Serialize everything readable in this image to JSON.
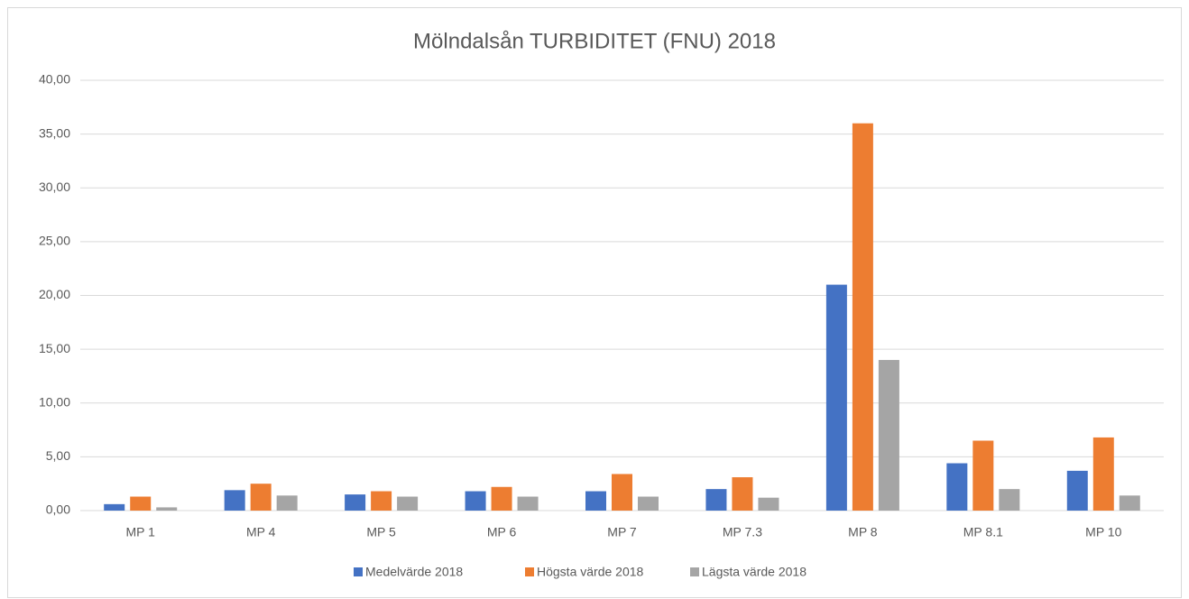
{
  "chart_data": {
    "type": "bar",
    "title": "Mölndalsån TURBIDITET (FNU)  2018",
    "categories": [
      "MP 1",
      "MP 4",
      "MP 5",
      "MP 6",
      "MP 7",
      "MP 7.3",
      "MP 8",
      "MP 8.1",
      "MP 10"
    ],
    "series": [
      {
        "name": "Medelvärde 2018",
        "color": "#4472c4",
        "values": [
          0.6,
          1.9,
          1.5,
          1.8,
          1.8,
          2.0,
          21.0,
          4.4,
          3.7
        ]
      },
      {
        "name": "Högsta värde 2018",
        "color": "#ed7d31",
        "values": [
          1.3,
          2.5,
          1.8,
          2.2,
          3.4,
          3.1,
          36.0,
          6.5,
          6.8
        ]
      },
      {
        "name": "Lägsta värde 2018",
        "color": "#a5a5a5",
        "values": [
          0.3,
          1.4,
          1.3,
          1.3,
          1.3,
          1.2,
          14.0,
          2.0,
          1.4
        ]
      }
    ],
    "ylim": [
      0,
      40
    ],
    "yticks": [
      {
        "value": 0,
        "label": "0,00"
      },
      {
        "value": 5,
        "label": "5,00"
      },
      {
        "value": 10,
        "label": "10,00"
      },
      {
        "value": 15,
        "label": "15,00"
      },
      {
        "value": 20,
        "label": "20,00"
      },
      {
        "value": 25,
        "label": "25,00"
      },
      {
        "value": 30,
        "label": "30,00"
      },
      {
        "value": 35,
        "label": "35,00"
      },
      {
        "value": 40,
        "label": "40,00"
      }
    ],
    "grid": true,
    "legend": "bottom"
  }
}
